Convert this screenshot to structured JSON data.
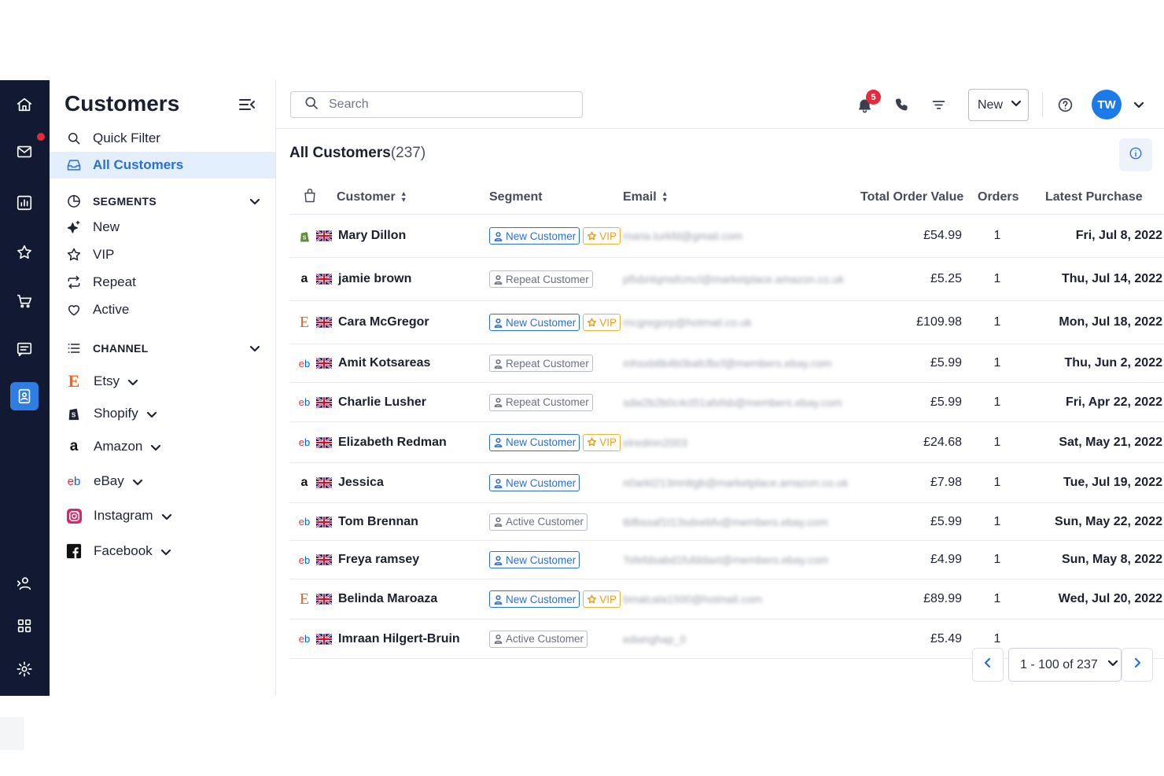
{
  "sidebar": {
    "title": "Customers",
    "quick_filter": "Quick Filter",
    "all_customers": "All Customers",
    "segments_heading": "SEGMENTS",
    "segments": [
      "New",
      "VIP",
      "Repeat",
      "Active"
    ],
    "channel_heading": "CHANNEL",
    "channels": [
      "Etsy",
      "Shopify",
      "Amazon",
      "eBay",
      "Instagram",
      "Facebook"
    ]
  },
  "topbar": {
    "search_placeholder": "Search",
    "notification_count": "5",
    "new_label": "New",
    "avatar_initials": "TW"
  },
  "main": {
    "title": "All Customers",
    "count": "(237)",
    "columns": {
      "customer": "Customer",
      "segment": "Segment",
      "email": "Email",
      "total": "Total Order Value",
      "orders": "Orders",
      "latest": "Latest Purchase"
    },
    "rows": [
      {
        "source": "shopify",
        "name": "Mary Dillon",
        "segments": [
          "New Customer",
          "VIP"
        ],
        "email": "maria.turkfd@gmail.com",
        "total": "£54.99",
        "orders": "1",
        "latest": "Fri, Jul 8, 2022"
      },
      {
        "source": "amazon",
        "name": "jamie brown",
        "segments": [
          "Repeat Customer"
        ],
        "email": "pflxbnlqmsfcmcl@marketplace.amazon.co.uk",
        "total": "£5.25",
        "orders": "1",
        "latest": "Thu, Jul 14, 2022"
      },
      {
        "source": "etsy",
        "name": "Cara McGregor",
        "segments": [
          "New Customer",
          "VIP"
        ],
        "email": "mcgregorp@hotmail.co.uk",
        "total": "£109.98",
        "orders": "1",
        "latest": "Mon, Jul 18, 2022"
      },
      {
        "source": "ebay",
        "name": "Amit Kotsareas",
        "segments": [
          "Repeat Customer"
        ],
        "email": "mhsxb6b4b0bafcfbcf@members.ebay.com",
        "total": "£5.99",
        "orders": "1",
        "latest": "Thu, Jun 2, 2022"
      },
      {
        "source": "ebay",
        "name": "Charlie Lusher",
        "segments": [
          "Repeat Customer"
        ],
        "email": "sdw2b2b0c4ct51afsfsb@members.ebay.com",
        "total": "£5.99",
        "orders": "1",
        "latest": "Fri, Apr 22, 2022"
      },
      {
        "source": "ebay",
        "name": "Elizabeth Redman",
        "segments": [
          "New Customer",
          "VIP"
        ],
        "email": "elredmn2003",
        "total": "£24.68",
        "orders": "1",
        "latest": "Sat, May 21, 2022"
      },
      {
        "source": "amazon",
        "name": "Jessica",
        "segments": [
          "New Customer"
        ],
        "email": "n0arkt213mnttgb@marketplace.amazon.co.uk",
        "total": "£7.98",
        "orders": "1",
        "latest": "Tue, Jul 19, 2022"
      },
      {
        "source": "ebay",
        "name": "Tom Brennan",
        "segments": [
          "Active Customer"
        ],
        "email": "tbfbssaf1t13sdxebfv@members.ebay.com",
        "total": "£5.99",
        "orders": "1",
        "latest": "Sun, May 22, 2022"
      },
      {
        "source": "ebay",
        "name": "Freya ramsey",
        "segments": [
          "New Customer"
        ],
        "email": "Tsfefdsabd1fufddaxt@members.ebay.com",
        "total": "£4.99",
        "orders": "1",
        "latest": "Sun, May 8, 2022"
      },
      {
        "source": "etsy",
        "name": "Belinda Maroaza",
        "segments": [
          "New Customer",
          "VIP"
        ],
        "email": "bmalcala1500@hotmail.com",
        "total": "£89.99",
        "orders": "1",
        "latest": "Wed, Jul 20, 2022"
      },
      {
        "source": "ebay",
        "name": "Imraan Hilgert-Bruin",
        "segments": [
          "Active Customer"
        ],
        "email": "edwnghap_0",
        "total": "£5.49",
        "orders": "1",
        "latest": ""
      }
    ],
    "pager": "1 - 100 of 237"
  },
  "colors": {
    "rail_bg": "#121a33",
    "accent": "#2a6fd6",
    "selected_bg": "#e4effd",
    "vip": "#f0a020",
    "alert": "#e8283b"
  }
}
